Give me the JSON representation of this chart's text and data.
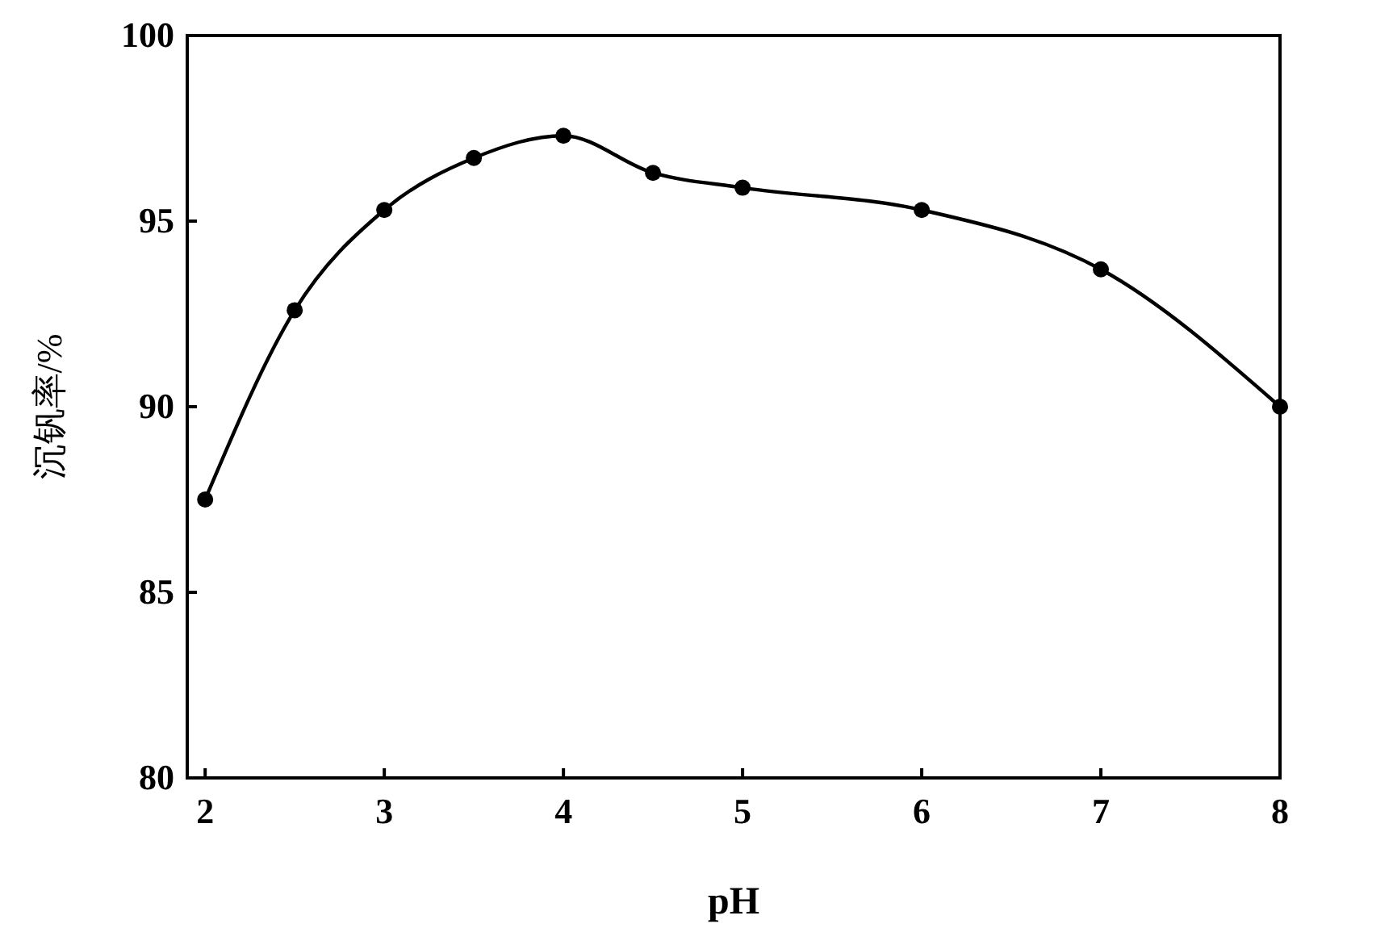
{
  "chart_data": {
    "type": "line",
    "xlabel": "pH",
    "ylabel": "沉钒率/%",
    "x": [
      2,
      2.5,
      3,
      3.5,
      4,
      4.5,
      5,
      6,
      7,
      8
    ],
    "series": [
      {
        "color": "#000000",
        "values": [
          87.5,
          92.6,
          95.3,
          96.7,
          97.3,
          96.3,
          95.9,
          95.3,
          93.7,
          90.0
        ]
      }
    ],
    "xlim": [
      1.9,
      8
    ],
    "ylim": [
      80,
      100
    ],
    "xticks": [
      2,
      3,
      4,
      5,
      6,
      7,
      8
    ],
    "yticks": [
      80,
      85,
      90,
      95,
      100
    ],
    "marker": "circle",
    "line_style": "solid"
  }
}
